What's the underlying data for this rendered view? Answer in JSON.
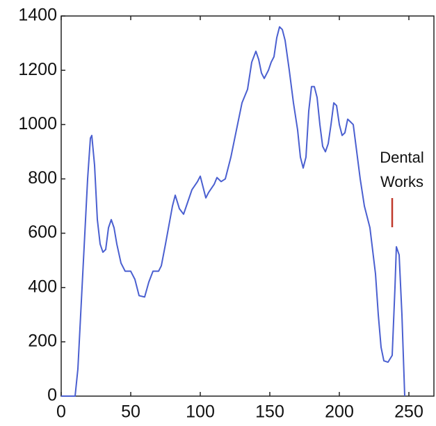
{
  "chart_data": {
    "type": "line",
    "x": [
      0,
      10,
      12,
      13,
      16,
      19,
      21,
      22,
      24,
      26,
      28,
      30,
      32,
      34,
      36,
      38,
      40,
      43,
      46,
      50,
      53,
      56,
      60,
      63,
      66,
      70,
      72,
      75,
      80,
      82,
      85,
      88,
      90,
      94,
      98,
      100,
      102,
      104,
      106,
      110,
      112,
      115,
      118,
      122,
      126,
      130,
      134,
      137,
      140,
      142,
      144,
      146,
      149,
      151,
      153,
      155,
      157,
      159,
      161,
      164,
      167,
      170,
      172,
      174,
      176,
      178,
      180,
      182,
      184,
      186,
      188,
      190,
      192,
      194,
      196,
      198,
      200,
      202,
      204,
      206,
      208,
      210,
      212,
      215,
      218,
      222,
      226,
      228,
      230,
      232,
      235,
      238,
      240,
      241,
      243,
      245,
      247
    ],
    "series": [
      {
        "color": "#4a5fd0",
        "values": [
          0,
          0,
          100,
          200,
          500,
          800,
          950,
          960,
          850,
          650,
          560,
          530,
          540,
          620,
          650,
          620,
          560,
          490,
          460,
          460,
          430,
          370,
          365,
          420,
          460,
          460,
          480,
          560,
          700,
          740,
          690,
          670,
          700,
          760,
          790,
          810,
          770,
          730,
          750,
          780,
          805,
          790,
          800,
          880,
          980,
          1080,
          1130,
          1230,
          1270,
          1240,
          1190,
          1170,
          1200,
          1230,
          1250,
          1320,
          1360,
          1350,
          1310,
          1200,
          1080,
          980,
          880,
          840,
          880,
          1050,
          1140,
          1140,
          1100,
          1000,
          920,
          900,
          930,
          1000,
          1080,
          1070,
          1000,
          960,
          970,
          1020,
          1010,
          1000,
          920,
          800,
          700,
          620,
          450,
          300,
          180,
          130,
          125,
          150,
          400,
          550,
          520,
          300,
          0
        ]
      }
    ],
    "xlim": [
      0,
      268
    ],
    "ylim": [
      0,
      1400
    ],
    "xticks": [
      0,
      50,
      100,
      150,
      200,
      250
    ],
    "yticks": [
      0,
      200,
      400,
      600,
      800,
      1000,
      1200,
      1400
    ],
    "annotation": {
      "lines": [
        "Dental",
        "Works"
      ],
      "color": "#c0392b"
    }
  }
}
